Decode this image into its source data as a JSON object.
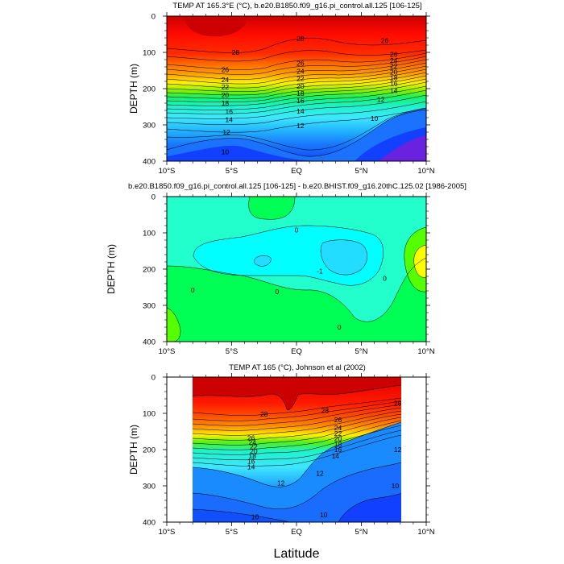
{
  "x_axis_label": "Latitude",
  "chart_data": [
    {
      "type": "heatmap",
      "title": "TEMP AT 165.3°E (°C), b.e20.B1850.f09_g16.pi_control.all.125 [106-125]",
      "xlabel": "",
      "ylabel": "DEPTH (m)",
      "x_ticks": [
        "10°S",
        "5°S",
        "EQ",
        "5°N",
        "10°N"
      ],
      "x_tick_values": [
        -10,
        -5,
        0,
        5,
        10
      ],
      "y_ticks": [
        "0",
        "100",
        "200",
        "300",
        "400"
      ],
      "y_tick_values": [
        0,
        100,
        200,
        300,
        400
      ],
      "xlim": [
        -10,
        10
      ],
      "ylim": [
        400,
        0
      ],
      "data_extent": [
        -10,
        10
      ],
      "contour_interval": 1,
      "contour_levels": [
        8,
        9,
        10,
        11,
        12,
        13,
        14,
        15,
        16,
        17,
        18,
        19,
        20,
        21,
        22,
        23,
        24,
        25,
        26,
        27,
        28,
        29,
        30
      ],
      "contour_labels": [
        {
          "text": "28",
          "lat": -4.7,
          "depth": 100
        },
        {
          "text": "28",
          "lat": 0.3,
          "depth": 62
        },
        {
          "text": "26",
          "lat": 6.8,
          "depth": 68
        },
        {
          "text": "26",
          "lat": -5.5,
          "depth": 148
        },
        {
          "text": "24",
          "lat": -5.5,
          "depth": 175
        },
        {
          "text": "22",
          "lat": -5.5,
          "depth": 195
        },
        {
          "text": "20",
          "lat": -5.5,
          "depth": 218
        },
        {
          "text": "18",
          "lat": -5.5,
          "depth": 240
        },
        {
          "text": "16",
          "lat": -5.2,
          "depth": 263
        },
        {
          "text": "14",
          "lat": -5.2,
          "depth": 285
        },
        {
          "text": "12",
          "lat": -5.4,
          "depth": 320
        },
        {
          "text": "10",
          "lat": -5.5,
          "depth": 374
        },
        {
          "text": "26",
          "lat": 0.3,
          "depth": 130
        },
        {
          "text": "24",
          "lat": 0.3,
          "depth": 152
        },
        {
          "text": "22",
          "lat": 0.3,
          "depth": 172
        },
        {
          "text": "20",
          "lat": 0.3,
          "depth": 193
        },
        {
          "text": "18",
          "lat": 0.3,
          "depth": 213
        },
        {
          "text": "16",
          "lat": 0.3,
          "depth": 233
        },
        {
          "text": "14",
          "lat": 0.3,
          "depth": 262
        },
        {
          "text": "12",
          "lat": 0.3,
          "depth": 302
        },
        {
          "text": "26",
          "lat": 7.5,
          "depth": 106
        },
        {
          "text": "24",
          "lat": 7.5,
          "depth": 122
        },
        {
          "text": "22",
          "lat": 7.5,
          "depth": 138
        },
        {
          "text": "20",
          "lat": 7.5,
          "depth": 154
        },
        {
          "text": "18",
          "lat": 7.5,
          "depth": 170
        },
        {
          "text": "16",
          "lat": 7.5,
          "depth": 186
        },
        {
          "text": "14",
          "lat": 7.5,
          "depth": 205
        },
        {
          "text": "12",
          "lat": 6.5,
          "depth": 230
        },
        {
          "text": "10",
          "lat": 6.0,
          "depth": 282
        }
      ]
    },
    {
      "type": "heatmap",
      "title": "b.e20.B1850.f09_g16.pi_control.all.125 [106-125] - b.e20.BHIST.f09_g16.20thC.125.02 [1986-2005]",
      "xlabel": "",
      "ylabel": "DEPTH (m)",
      "x_ticks": [
        "10°S",
        "5°S",
        "EQ",
        "5°N",
        "10°N"
      ],
      "x_tick_values": [
        -10,
        -5,
        0,
        5,
        10
      ],
      "y_ticks": [
        "0",
        "100",
        "200",
        "300",
        "400"
      ],
      "y_tick_values": [
        0,
        100,
        200,
        300,
        400
      ],
      "xlim": [
        -10,
        10
      ],
      "ylim": [
        400,
        0
      ],
      "data_extent": [
        -10,
        10
      ],
      "contour_interval": 1,
      "contour_levels": [
        -2,
        -1,
        0,
        1,
        2
      ],
      "contour_labels": [
        {
          "text": "0",
          "lat": 0.0,
          "depth": 92
        },
        {
          "text": "-1",
          "lat": 1.8,
          "depth": 205
        },
        {
          "text": "0",
          "lat": 6.8,
          "depth": 225
        },
        {
          "text": "0",
          "lat": -8.0,
          "depth": 258
        },
        {
          "text": "0",
          "lat": -1.5,
          "depth": 262
        },
        {
          "text": "0",
          "lat": 3.3,
          "depth": 360
        }
      ]
    },
    {
      "type": "heatmap",
      "title": "TEMP AT 165 (°C), Johnson et al (2002)",
      "xlabel": "Latitude",
      "ylabel": "DEPTH (m)",
      "x_ticks": [
        "10°S",
        "5°S",
        "EQ",
        "5°N",
        "10°N"
      ],
      "x_tick_values": [
        -10,
        -5,
        0,
        5,
        10
      ],
      "y_ticks": [
        "0",
        "100",
        "200",
        "300",
        "400"
      ],
      "y_tick_values": [
        0,
        100,
        200,
        300,
        400
      ],
      "xlim": [
        -10,
        10
      ],
      "ylim": [
        400,
        0
      ],
      "data_extent": [
        -8,
        8
      ],
      "contour_interval": 1,
      "contour_levels": [
        8,
        9,
        10,
        11,
        12,
        13,
        14,
        15,
        16,
        17,
        18,
        19,
        20,
        21,
        22,
        23,
        24,
        25,
        26,
        27,
        28,
        29,
        30
      ],
      "contour_labels": [
        {
          "text": "28",
          "lat": -2.5,
          "depth": 102
        },
        {
          "text": "28",
          "lat": 2.2,
          "depth": 92
        },
        {
          "text": "28",
          "lat": 7.8,
          "depth": 72
        },
        {
          "text": "26",
          "lat": 3.2,
          "depth": 118
        },
        {
          "text": "24",
          "lat": 3.2,
          "depth": 140
        },
        {
          "text": "22",
          "lat": 3.2,
          "depth": 155
        },
        {
          "text": "20",
          "lat": 3.2,
          "depth": 170
        },
        {
          "text": "18",
          "lat": 3.2,
          "depth": 186
        },
        {
          "text": "16",
          "lat": 3.2,
          "depth": 200
        },
        {
          "text": "14",
          "lat": 3.0,
          "depth": 218
        },
        {
          "text": "12",
          "lat": 1.8,
          "depth": 265
        },
        {
          "text": "26",
          "lat": -3.5,
          "depth": 168
        },
        {
          "text": "24",
          "lat": -3.4,
          "depth": 180
        },
        {
          "text": "22",
          "lat": -3.3,
          "depth": 192
        },
        {
          "text": "20",
          "lat": -3.3,
          "depth": 204
        },
        {
          "text": "18",
          "lat": -3.4,
          "depth": 218
        },
        {
          "text": "16",
          "lat": -3.5,
          "depth": 232
        },
        {
          "text": "14",
          "lat": -3.5,
          "depth": 248
        },
        {
          "text": "12",
          "lat": -1.2,
          "depth": 292
        },
        {
          "text": "12",
          "lat": 7.8,
          "depth": 200
        },
        {
          "text": "10",
          "lat": 7.6,
          "depth": 300
        },
        {
          "text": "10",
          "lat": -3.2,
          "depth": 385
        },
        {
          "text": "10",
          "lat": 2.1,
          "depth": 380
        }
      ]
    }
  ],
  "colors": {
    "temp_scale": [
      "#7a1fd6",
      "#3b1fe6",
      "#1140ff",
      "#1a72ff",
      "#22a4ff",
      "#2fd0ff",
      "#5ff0ff",
      "#1ef2c8",
      "#12f072",
      "#52f015",
      "#b0f000",
      "#fff000",
      "#ffc000",
      "#ff9000",
      "#ff6a00",
      "#ff3c00",
      "#ff1200",
      "#e00000",
      "#b60000"
    ],
    "diff_bg": "#22ffcc",
    "diff_minus1": "#00ffff",
    "diff_minus2": "#22ddff",
    "diff_plus": "#00ff55",
    "diff_plus2": "#55ff00",
    "diff_plus3": "#ffff00"
  }
}
